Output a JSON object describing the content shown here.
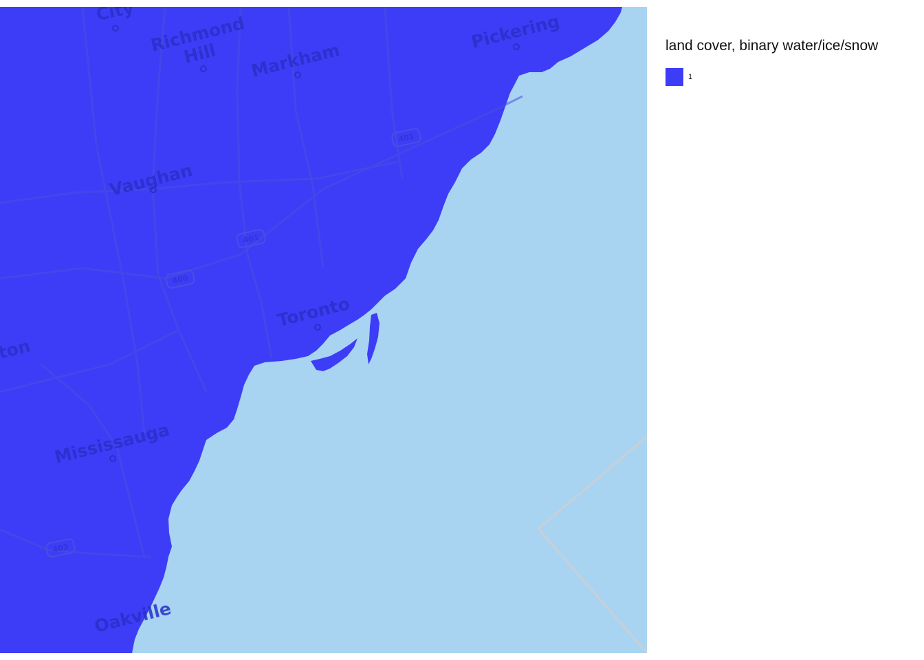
{
  "legend": {
    "title": "land cover, binary water/ice/snow",
    "items": [
      {
        "label": "1",
        "color": "#3d3df7"
      }
    ]
  },
  "colors": {
    "land": "#3d3df7",
    "lake": "#a8d4f2",
    "roads": "#4a4fe0",
    "boundary": "#c9cfd6",
    "background": "#ffffff"
  },
  "map": {
    "cities": [
      {
        "id": "city",
        "name": "City"
      },
      {
        "id": "richmond-hill-1",
        "name": "Richmond"
      },
      {
        "id": "richmond-hill-2",
        "name": "Hill"
      },
      {
        "id": "markham",
        "name": "Markham"
      },
      {
        "id": "pickering",
        "name": "Pickering"
      },
      {
        "id": "vaughan",
        "name": "Vaughan"
      },
      {
        "id": "toronto",
        "name": "Toronto"
      },
      {
        "id": "brampton",
        "name": "ton"
      },
      {
        "id": "mississauga",
        "name": "Mississauga"
      },
      {
        "id": "oakville",
        "name": "Oakville"
      }
    ],
    "highways": [
      {
        "id": "hwy-401-east",
        "number": "401"
      },
      {
        "id": "hwy-401-central",
        "number": "401"
      },
      {
        "id": "hwy-400",
        "number": "400"
      },
      {
        "id": "hwy-403",
        "number": "403"
      }
    ]
  }
}
